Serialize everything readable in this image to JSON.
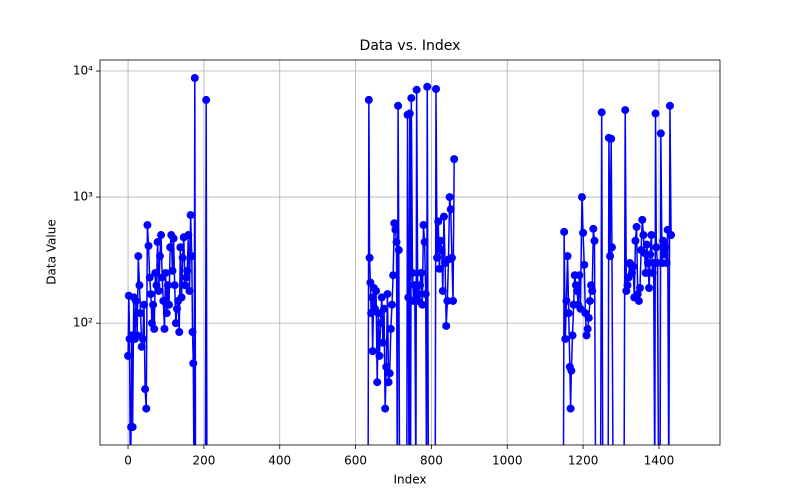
{
  "chart_data": {
    "type": "line",
    "title": "Data vs. Index",
    "x_label": "Index",
    "y_label": "Data Value",
    "color": "#0000ff",
    "yscale": "log",
    "grid": true,
    "xlim": [
      -74,
      1561
    ],
    "ylim": [
      10.8,
      12230
    ],
    "xticks": [
      0,
      200,
      400,
      600,
      800,
      1000,
      1200,
      1400
    ],
    "yticks": [
      {
        "value": 100,
        "label": "10²"
      },
      {
        "value": 1000,
        "label": "10³"
      },
      {
        "value": 10000,
        "label": "10⁴"
      }
    ],
    "x": [
      0,
      2,
      4,
      6,
      8,
      10,
      12,
      15,
      18,
      21,
      24,
      27,
      30,
      33,
      36,
      39,
      42,
      45,
      48,
      51,
      54,
      57,
      60,
      63,
      66,
      69,
      72,
      75,
      78,
      81,
      84,
      87,
      90,
      93,
      96,
      99,
      102,
      105,
      108,
      111,
      114,
      117,
      120,
      123,
      126,
      129,
      132,
      135,
      138,
      141,
      144,
      147,
      150,
      153,
      156,
      159,
      162,
      165,
      168,
      170,
      172,
      174,
      176,
      178,
      204,
      206,
      208,
      420,
      633,
      635,
      637,
      639,
      641,
      643,
      645,
      648,
      651,
      654,
      657,
      660,
      663,
      666,
      669,
      672,
      675,
      678,
      681,
      684,
      687,
      690,
      693,
      696,
      699,
      702,
      705,
      708,
      710,
      712,
      714,
      716,
      735,
      737,
      739,
      741,
      743,
      745,
      747,
      750,
      753,
      756,
      759,
      761,
      764,
      767,
      770,
      773,
      776,
      779,
      782,
      785,
      787,
      789,
      792,
      810,
      812,
      815,
      818,
      821,
      824,
      827,
      830,
      833,
      836,
      839,
      842,
      845,
      848,
      851,
      854,
      857,
      860,
      1000,
      1148,
      1150,
      1153,
      1156,
      1159,
      1162,
      1165,
      1167,
      1169,
      1172,
      1175,
      1178,
      1181,
      1184,
      1187,
      1190,
      1193,
      1197,
      1200,
      1203,
      1206,
      1209,
      1212,
      1215,
      1218,
      1221,
      1224,
      1227,
      1230,
      1233,
      1246,
      1249,
      1252,
      1266,
      1268,
      1271,
      1274,
      1276,
      1279,
      1308,
      1311,
      1314,
      1317,
      1320,
      1323,
      1326,
      1329,
      1332,
      1335,
      1338,
      1341,
      1344,
      1347,
      1350,
      1353,
      1356,
      1359,
      1362,
      1365,
      1368,
      1371,
      1374,
      1377,
      1380,
      1383,
      1386,
      1389,
      1391,
      1393,
      1396,
      1399,
      1403,
      1405,
      1408,
      1411,
      1414,
      1417,
      1420,
      1423,
      1426,
      1429,
      1432
    ],
    "values": [
      55,
      165,
      75,
      0,
      15,
      80,
      15,
      160,
      75,
      150,
      80,
      340,
      200,
      120,
      65,
      75,
      140,
      30,
      21,
      600,
      410,
      230,
      170,
      100,
      140,
      90,
      250,
      200,
      440,
      180,
      340,
      500,
      230,
      150,
      90,
      250,
      120,
      200,
      140,
      400,
      500,
      260,
      470,
      200,
      100,
      130,
      150,
      85,
      400,
      160,
      330,
      480,
      200,
      230,
      260,
      500,
      180,
      720,
      340,
      85,
      48,
      0,
      8800,
      0,
      0,
      5900,
      0,
      null,
      0,
      5900,
      330,
      210,
      120,
      160,
      60,
      190,
      130,
      180,
      34,
      120,
      55,
      100,
      160,
      70,
      130,
      21,
      45,
      170,
      34,
      40,
      90,
      140,
      240,
      620,
      550,
      440,
      0,
      5300,
      380,
      0,
      0,
      4500,
      160,
      0,
      4600,
      0,
      6100,
      250,
      150,
      200,
      0,
      7100,
      150,
      170,
      200,
      250,
      140,
      600,
      440,
      170,
      0,
      7500,
      0,
      0,
      7200,
      330,
      640,
      270,
      450,
      380,
      180,
      700,
      300,
      95,
      150,
      320,
      1000,
      800,
      330,
      150,
      2000,
      null,
      0,
      530,
      75,
      150,
      340,
      120,
      45,
      21,
      42,
      80,
      140,
      240,
      200,
      180,
      140,
      240,
      130,
      1000,
      520,
      290,
      120,
      80,
      90,
      110,
      150,
      200,
      180,
      560,
      450,
      0,
      0,
      4700,
      0,
      0,
      2950,
      340,
      2900,
      400,
      0,
      0,
      4900,
      180,
      200,
      230,
      300,
      290,
      250,
      280,
      160,
      450,
      580,
      170,
      150,
      190,
      380,
      660,
      500,
      360,
      250,
      420,
      300,
      190,
      350,
      500,
      250,
      300,
      0,
      4600,
      400,
      300,
      0,
      0,
      3200,
      300,
      450,
      350,
      400,
      300,
      550,
      0,
      5300,
      500
    ]
  }
}
